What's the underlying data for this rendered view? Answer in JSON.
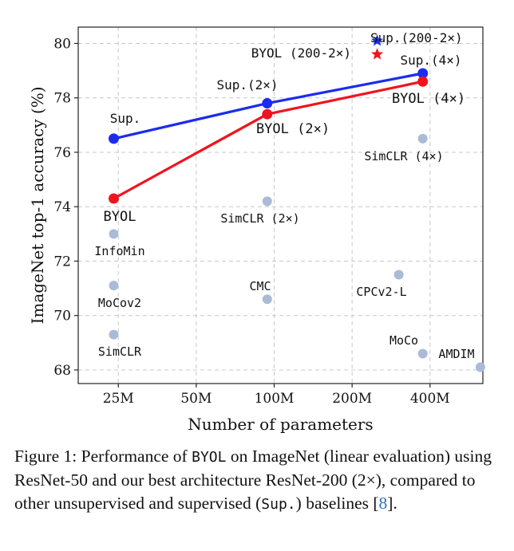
{
  "chart_data": {
    "type": "scatter",
    "title": "",
    "xlabel": "Number of parameters",
    "ylabel": "ImageNet top-1 accuracy (%)",
    "x_scale": "log",
    "xlim": [
      17.5,
      640
    ],
    "ylim": [
      67.5,
      80.6
    ],
    "x_ticks": [
      25,
      50,
      100,
      200,
      400
    ],
    "x_tick_labels": [
      "25M",
      "50M",
      "100M",
      "200M",
      "400M"
    ],
    "y_ticks": [
      68,
      70,
      72,
      74,
      76,
      78,
      80
    ],
    "y_tick_labels": [
      "68",
      "70",
      "72",
      "74",
      "76",
      "78",
      "80"
    ],
    "grid": true,
    "series": [
      {
        "name": "Sup.",
        "style": "line",
        "color": "#1a2cf0",
        "x": [
          24,
          94,
          375
        ],
        "y": [
          76.5,
          77.8,
          78.9
        ]
      },
      {
        "name": "BYOL",
        "style": "line",
        "color": "#f0141e",
        "x": [
          24,
          94,
          375
        ],
        "y": [
          74.3,
          77.4,
          78.6
        ]
      }
    ],
    "stars": [
      {
        "label": "Sup.(200-2×)",
        "x": 250,
        "y": 80.1,
        "color": "#1a2cf0"
      },
      {
        "label": "BYOL (200-2×)",
        "x": 250,
        "y": 79.6,
        "color": "#f0141e"
      }
    ],
    "baselines_color": "#aabbd7",
    "baselines": [
      {
        "label": "InfoMin",
        "x": 24,
        "y": 73.0
      },
      {
        "label": "MoCov2",
        "x": 24,
        "y": 71.1
      },
      {
        "label": "SimCLR",
        "x": 24,
        "y": 69.3
      },
      {
        "label": "SimCLR (2×)",
        "x": 94,
        "y": 74.2
      },
      {
        "label": "CMC",
        "x": 94,
        "y": 70.6
      },
      {
        "label": "SimCLR (4×)",
        "x": 375,
        "y": 76.5
      },
      {
        "label": "CPCv2-L",
        "x": 303,
        "y": 71.5
      },
      {
        "label": "MoCo",
        "x": 375,
        "y": 68.6
      },
      {
        "label": "AMDIM",
        "x": 626,
        "y": 68.1
      }
    ],
    "series_labels": [
      {
        "label": "Sup.",
        "for": "Sup. 25M"
      },
      {
        "label": "Sup.(2×)",
        "for": "Sup. 100M"
      },
      {
        "label": "Sup.(4×)",
        "for": "Sup. 400M"
      },
      {
        "label": "BYOL",
        "for": "BYOL 25M"
      },
      {
        "label": "BYOL (2×)",
        "for": "BYOL 100M"
      },
      {
        "label": "BYOL (4×)",
        "for": "BYOL 400M"
      }
    ]
  },
  "caption": {
    "prefix": "Figure 1: Performance of ",
    "method": "BYOL",
    "middle": " on ImageNet (linear evaluation) using ResNet-50 and our best architecture ResNet-200 (2×), compared to other unsupervised and supervised (",
    "sup": "Sup.",
    "suffix": ") baselines [",
    "ref": "8",
    "end": "]."
  }
}
